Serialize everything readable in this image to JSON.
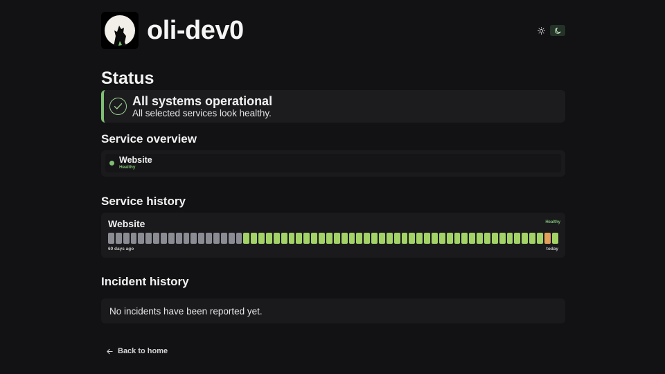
{
  "site": {
    "title": "oli-dev0",
    "logo_icon": "wolf-moon-icon"
  },
  "theme": {
    "light_icon": "sun-icon",
    "dark_icon": "moon-icon",
    "active": "dark"
  },
  "page": {
    "title": "Status"
  },
  "status": {
    "headline": "All systems operational",
    "subtext": "All selected services look healthy.",
    "icon": "check-circle-icon",
    "accent_color": "#7fbf74"
  },
  "overview": {
    "title": "Service overview",
    "services": [
      {
        "name": "Website",
        "state": "Healthy"
      }
    ]
  },
  "history": {
    "title": "Service history",
    "services": [
      {
        "name": "Website",
        "state": "Healthy",
        "range_start_label": "60 days ago",
        "range_end_label": "today",
        "days": [
          "none",
          "none",
          "none",
          "none",
          "none",
          "none",
          "none",
          "none",
          "none",
          "none",
          "none",
          "none",
          "none",
          "none",
          "none",
          "none",
          "none",
          "none",
          "up",
          "up",
          "up",
          "up",
          "up",
          "up",
          "up",
          "up",
          "up",
          "up",
          "up",
          "up",
          "up",
          "up",
          "up",
          "up",
          "up",
          "up",
          "up",
          "up",
          "up",
          "up",
          "up",
          "up",
          "up",
          "up",
          "up",
          "up",
          "up",
          "up",
          "up",
          "up",
          "up",
          "up",
          "up",
          "up",
          "up",
          "up",
          "up",
          "up",
          "degraded",
          "up"
        ]
      }
    ],
    "colors": {
      "none": "#8b8b93",
      "up": "#a3d266",
      "degraded": "#e3a05a"
    }
  },
  "incidents": {
    "title": "Incident history",
    "empty_message": "No incidents have been reported yet."
  },
  "footer": {
    "back_label": "Back to home",
    "back_icon": "arrow-left-icon"
  }
}
